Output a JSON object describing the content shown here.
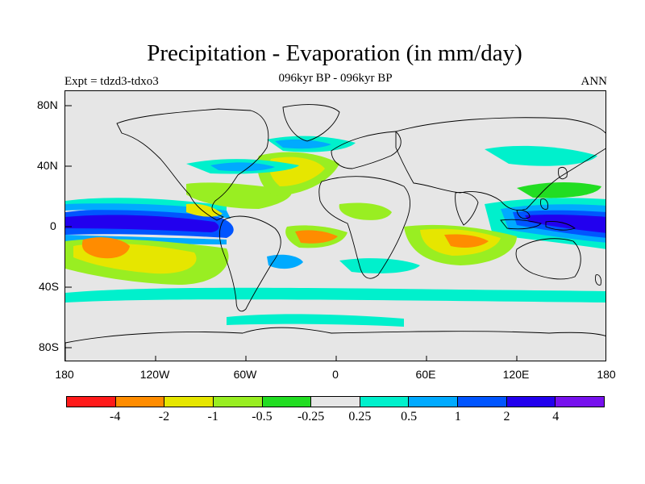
{
  "title": "Precipitation - Evaporation (in mm/day)",
  "subtitle_left": "Expt = tdzd3-tdxo3",
  "subtitle_center": "096kyr BP - 096kyr BP",
  "subtitle_right": "ANN",
  "lat_labels": [
    "80N",
    "40N",
    "0",
    "40S",
    "80S"
  ],
  "lon_labels": [
    "180",
    "120W",
    "60W",
    "0",
    "60E",
    "120E",
    "180"
  ],
  "colorbar": {
    "colors": [
      "#ff1a1a",
      "#ff8c00",
      "#e6e600",
      "#99ee22",
      "#22dd22",
      "#e6e6e6",
      "#00f0cc",
      "#00aaff",
      "#0055ff",
      "#2200ee",
      "#7711ee"
    ],
    "labels": [
      "-4",
      "-2",
      "-1",
      "-0.5",
      "-0.25",
      "0.25",
      "0.5",
      "1",
      "2",
      "4"
    ]
  },
  "map": {
    "background_color": "#e6e6e6",
    "lon_range": [
      -180,
      180
    ],
    "lat_range": [
      -90,
      90
    ]
  }
}
